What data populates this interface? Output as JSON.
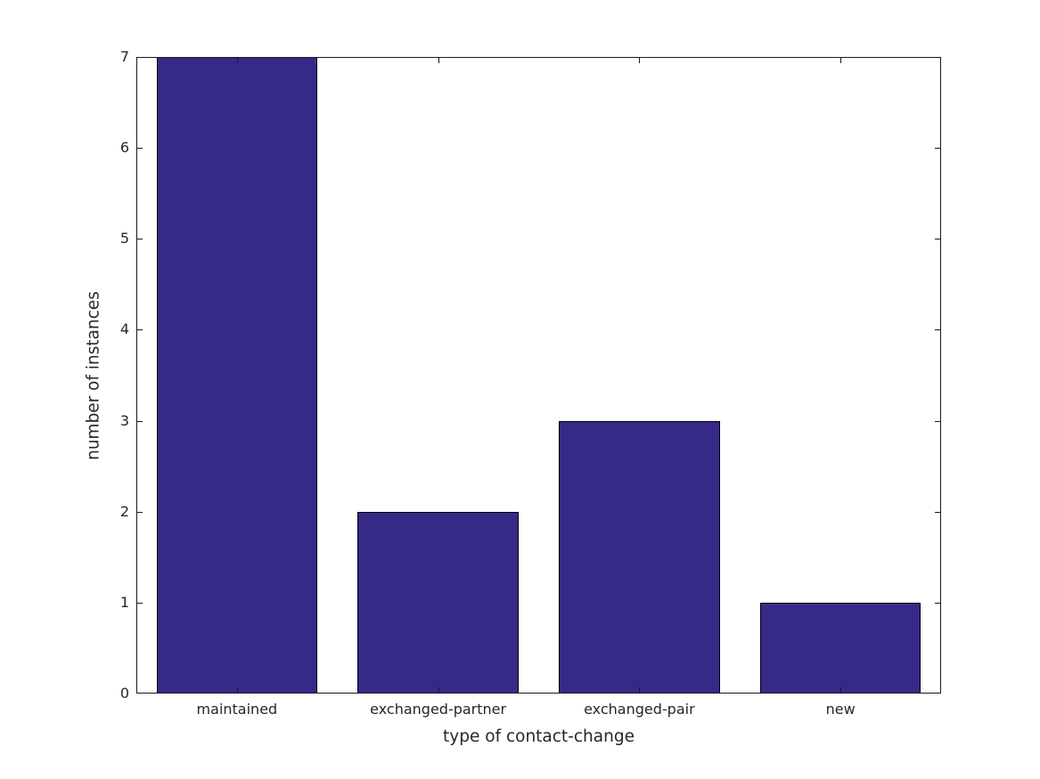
{
  "figure": {
    "background_color": "#ffffff",
    "axis_color": "#1a1a1a",
    "text_color": "#262626"
  },
  "chart_data": {
    "type": "bar",
    "title": "",
    "categories": [
      "maintained",
      "exchanged-partner",
      "exchanged-pair",
      "new"
    ],
    "values": [
      7,
      2,
      3,
      1
    ],
    "xlabel": "type of contact-change",
    "ylabel": "number of instances",
    "ylim": [
      0,
      7
    ],
    "yticks": [
      0,
      1,
      2,
      3,
      4,
      5,
      6,
      7
    ],
    "bar_color": "#352A87",
    "bar_edge_color": "#000000",
    "bar_width_fraction": 0.8,
    "grid": false,
    "legend": null,
    "box": true,
    "tick_direction": "in"
  }
}
